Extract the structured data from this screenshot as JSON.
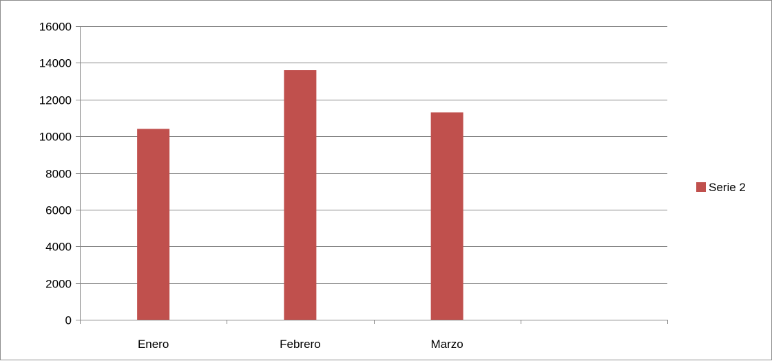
{
  "chart_data": {
    "type": "bar",
    "categories": [
      "Enero",
      "Febrero",
      "Marzo",
      ""
    ],
    "series": [
      {
        "name": "Serie 2",
        "values": [
          10400,
          13600,
          11300,
          null
        ],
        "color": "#c0504d"
      }
    ],
    "ylim": [
      0,
      16000
    ],
    "yticks": [
      0,
      2000,
      4000,
      6000,
      8000,
      10000,
      12000,
      14000,
      16000
    ],
    "grid": true,
    "legend_position": "right",
    "gridline_color": "#868686",
    "axis_color": "#868686"
  }
}
